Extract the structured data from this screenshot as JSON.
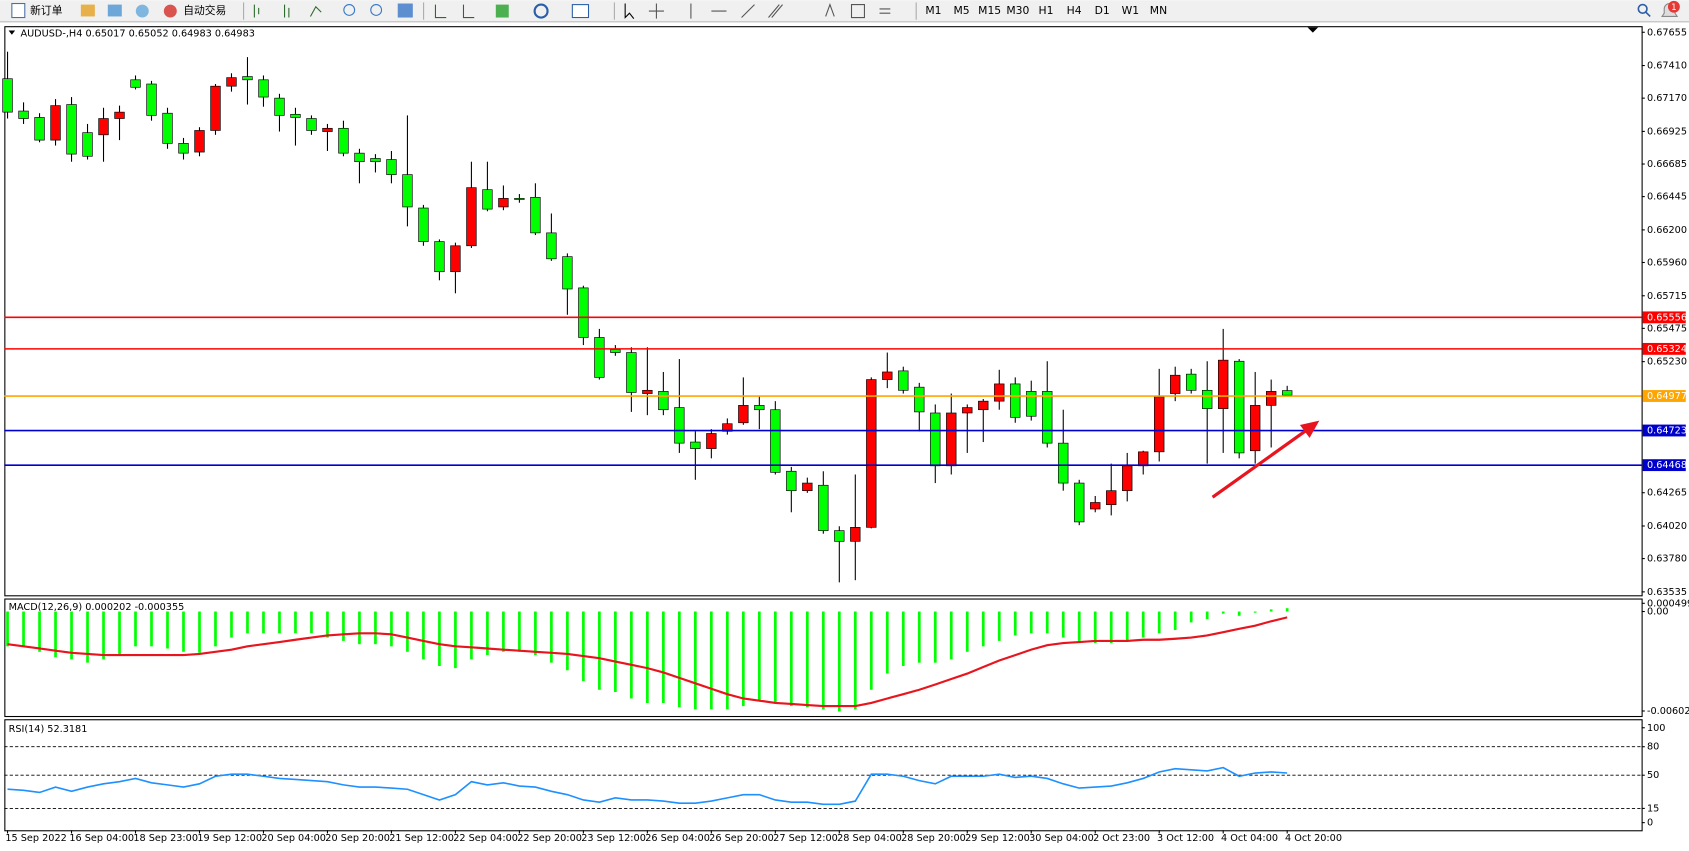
{
  "toolbar": {
    "new_order": "新订单",
    "auto_trading": "自动交易",
    "timeframes": [
      "M1",
      "M5",
      "M15",
      "M30",
      "H1",
      "H4",
      "D1",
      "W1",
      "MN"
    ],
    "notifications": 1
  },
  "chart_data": [
    {
      "type": "candlestick",
      "title": "AUDUSD-,H4 0.65017 0.65052 0.64983 0.64983",
      "categories": [
        "15 Sep 2022",
        null,
        null,
        null,
        "16 Sep 04:00",
        null,
        null,
        null,
        "18 Sep 23:00",
        null,
        null,
        null,
        "19 Sep 12:00",
        null,
        null,
        null,
        "20 Sep 04:00",
        null,
        null,
        null,
        "20 Sep 20:00",
        null,
        null,
        null,
        "21 Sep 12:00",
        null,
        null,
        null,
        "22 Sep 04:00",
        null,
        null,
        null,
        "22 Sep 20:00",
        null,
        null,
        null,
        "23 Sep 12:00",
        null,
        null,
        null,
        "26 Sep 04:00",
        null,
        null,
        null,
        "26 Sep 20:00",
        null,
        null,
        null,
        "27 Sep 12:00",
        null,
        null,
        null,
        "28 Sep 04:00",
        null,
        null,
        null,
        "28 Sep 20:00",
        null,
        null,
        null,
        "29 Sep 12:00",
        null,
        null,
        null,
        "30 Sep 04:00",
        null,
        null,
        null,
        "2 Oct 23:00",
        null,
        null,
        null,
        "3 Oct 12:00",
        null,
        null,
        null,
        "4 Oct 04:00",
        null,
        null,
        null,
        "4 Oct 20:00"
      ],
      "open": [
        0.67313,
        0.67075,
        0.67028,
        0.66861,
        0.67123,
        0.66916,
        0.669,
        0.6702,
        0.67305,
        0.67274,
        0.67059,
        0.66837,
        0.66773,
        0.66932,
        0.67258,
        0.67329,
        0.67305,
        0.6717,
        0.67051,
        0.6702,
        0.66924,
        0.66948,
        0.66765,
        0.66726,
        0.66718,
        0.66607,
        0.66361,
        0.66114,
        0.65892,
        0.66083,
        0.66496,
        0.66369,
        0.66432,
        0.6644,
        0.66178,
        0.66003,
        0.65773,
        0.65408,
        0.6532,
        0.65297,
        0.64995,
        0.65011,
        0.64892,
        0.64638,
        0.6459,
        0.64717,
        0.6478,
        0.64908,
        0.64876,
        0.64423,
        0.6428,
        0.6432,
        0.63986,
        0.63907,
        0.6401,
        0.65098,
        0.65162,
        0.65042,
        0.64852,
        0.64463,
        0.64852,
        0.64876,
        0.64939,
        0.65066,
        0.65011,
        0.65011,
        0.6463,
        0.64336,
        0.64145,
        0.64177,
        0.6428,
        0.64463,
        0.64566,
        0.64995,
        0.65138,
        0.65019,
        0.64884,
        0.65233,
        0.64574,
        0.64908,
        0.65017
      ],
      "high": [
        0.67512,
        0.67139,
        0.67059,
        0.67163,
        0.67178,
        0.6698,
        0.67099,
        0.67115,
        0.67337,
        0.67297,
        0.67099,
        0.66877,
        0.66956,
        0.67274,
        0.67353,
        0.67472,
        0.67337,
        0.67202,
        0.67099,
        0.67043,
        0.6698,
        0.67004,
        0.66797,
        0.66758,
        0.66781,
        0.67043,
        0.66384,
        0.6613,
        0.66106,
        0.66702,
        0.66702,
        0.66527,
        0.66464,
        0.66543,
        0.66321,
        0.66027,
        0.65789,
        0.65471,
        0.65352,
        0.65336,
        0.65336,
        0.65154,
        0.65249,
        0.64717,
        0.64733,
        0.64812,
        0.65114,
        0.64979,
        0.64939,
        0.64455,
        0.64376,
        0.64423,
        0.64018,
        0.64399,
        0.65114,
        0.65297,
        0.65193,
        0.65074,
        0.64915,
        0.64995,
        0.64915,
        0.64955,
        0.6517,
        0.65114,
        0.6509,
        0.65233,
        0.64876,
        0.6436,
        0.64241,
        0.64479,
        0.64558,
        0.64574,
        0.65177,
        0.65193,
        0.65177,
        0.65233,
        0.65471,
        0.65249,
        0.65154,
        0.65098,
        0.65052
      ],
      "low": [
        0.6702,
        0.6698,
        0.66845,
        0.66821,
        0.66702,
        0.66718,
        0.66702,
        0.66861,
        0.67234,
        0.67004,
        0.66797,
        0.66718,
        0.66742,
        0.669,
        0.67218,
        0.67123,
        0.67107,
        0.66924,
        0.66821,
        0.669,
        0.66781,
        0.66742,
        0.66543,
        0.66623,
        0.66543,
        0.66226,
        0.66083,
        0.65829,
        0.65733,
        0.66067,
        0.66337,
        0.66345,
        0.664,
        0.66162,
        0.65972,
        0.65575,
        0.65352,
        0.65098,
        0.65273,
        0.6486,
        0.64836,
        0.64836,
        0.64558,
        0.6436,
        0.64518,
        0.64693,
        0.64765,
        0.64733,
        0.64399,
        0.64121,
        0.64264,
        0.63963,
        0.63605,
        0.63621,
        0.64002,
        0.65035,
        0.64995,
        0.64717,
        0.64336,
        0.64399,
        0.64558,
        0.64638,
        0.64876,
        0.6478,
        0.64796,
        0.64598,
        0.6428,
        0.64026,
        0.64121,
        0.64098,
        0.64201,
        0.64399,
        0.64495,
        0.64939,
        0.64995,
        0.64479,
        0.64558,
        0.64518,
        0.64479,
        0.64598,
        0.64983
      ],
      "close": [
        0.67067,
        0.6702,
        0.66861,
        0.67115,
        0.66758,
        0.66742,
        0.6702,
        0.67067,
        0.6725,
        0.67043,
        0.66837,
        0.66765,
        0.66932,
        0.67258,
        0.67321,
        0.67305,
        0.67178,
        0.67043,
        0.67028,
        0.66932,
        0.66948,
        0.66765,
        0.66702,
        0.66702,
        0.66607,
        0.66369,
        0.66114,
        0.65892,
        0.66083,
        0.66511,
        0.66353,
        0.66432,
        0.66424,
        0.66178,
        0.65987,
        0.65765,
        0.65408,
        0.65114,
        0.65297,
        0.65003,
        0.65019,
        0.64876,
        0.6463,
        0.6459,
        0.64701,
        0.64773,
        0.64908,
        0.64876,
        0.64415,
        0.6428,
        0.64336,
        0.63986,
        0.63907,
        0.6401,
        0.65098,
        0.65154,
        0.65019,
        0.6486,
        0.64463,
        0.64852,
        0.64892,
        0.64939,
        0.65066,
        0.6482,
        0.64828,
        0.6463,
        0.64336,
        0.6405,
        0.64193,
        0.6428,
        0.64463,
        0.64566,
        0.64971,
        0.6513,
        0.65019,
        0.64884,
        0.65241,
        0.64558,
        0.64908,
        0.65011,
        0.64983
      ],
      "up_color": "#ff0000",
      "down_color": "#00ff00",
      "ylim": [
        0.6351,
        0.677
      ],
      "yticks": [
        0.67655,
        {
          "value": 0.6741,
          "label": "0.67410"
        },
        {
          "value": 0.6717,
          "label": "0.67170"
        },
        0.66925,
        0.66685,
        0.66445,
        {
          "value": 0.662,
          "label": "0.66200"
        },
        {
          "value": 0.6596,
          "label": "0.65960"
        },
        0.65715,
        0.65475,
        {
          "value": 0.6523,
          "label": "0.65230"
        },
        0.64265,
        {
          "value": 0.6402,
          "label": "0.64020"
        },
        {
          "value": 0.6378,
          "label": "0.63780"
        },
        0.63535
      ],
      "levels": [
        {
          "value": 0.65556,
          "color": "#ff0000"
        },
        {
          "value": 0.65324,
          "color": "#ff0000"
        },
        {
          "value": 0.64977,
          "color": "#ffa500"
        },
        {
          "value": 0.64723,
          "color": "#0000cd"
        },
        {
          "value": 0.64468,
          "color": "#0000cd"
        }
      ]
    },
    {
      "type": "macd",
      "title": "MACD(12,26,9) 0.000202 -0.000355",
      "values": [
        -0.00211,
        -0.00211,
        -0.00244,
        -0.00277,
        -0.0029,
        -0.0031,
        -0.0029,
        -0.00264,
        -0.00211,
        -0.00211,
        -0.00224,
        -0.00244,
        -0.0025,
        -0.00211,
        -0.00158,
        -0.00132,
        -0.00132,
        -0.00132,
        -0.00132,
        -0.00132,
        -0.00158,
        -0.00178,
        -0.00198,
        -0.00198,
        -0.00211,
        -0.00244,
        -0.0029,
        -0.0033,
        -0.00343,
        -0.0029,
        -0.00264,
        -0.00244,
        -0.00244,
        -0.00264,
        -0.0031,
        -0.00356,
        -0.00422,
        -0.00474,
        -0.00488,
        -0.00527,
        -0.00554,
        -0.00554,
        -0.0058,
        -0.00593,
        -0.00593,
        -0.00593,
        -0.00573,
        -0.0054,
        -0.00554,
        -0.00573,
        -0.0058,
        -0.00593,
        -0.00606,
        -0.00593,
        -0.00474,
        -0.00376,
        -0.0033,
        -0.0031,
        -0.0031,
        -0.0029,
        -0.00244,
        -0.00211,
        -0.00178,
        -0.00145,
        -0.00132,
        -0.00132,
        -0.00158,
        -0.00178,
        -0.00191,
        -0.00191,
        -0.00178,
        -0.00158,
        -0.00132,
        -0.00112,
        -0.00066,
        -0.00046,
        -0.00013,
        -0.00026,
        -7e-05,
        0.00013,
        0.000202
      ],
      "color": "#00ff00",
      "signal": [
        -0.00198,
        -0.00211,
        -0.00224,
        -0.00237,
        -0.0025,
        -0.00257,
        -0.00264,
        -0.00264,
        -0.00264,
        -0.00264,
        -0.00264,
        -0.00264,
        -0.00257,
        -0.00244,
        -0.00231,
        -0.00211,
        -0.00198,
        -0.00185,
        -0.00171,
        -0.00158,
        -0.00145,
        -0.00138,
        -0.00132,
        -0.00132,
        -0.00138,
        -0.00158,
        -0.00178,
        -0.00198,
        -0.00211,
        -0.00217,
        -0.00224,
        -0.00231,
        -0.00237,
        -0.00244,
        -0.0025,
        -0.00257,
        -0.0027,
        -0.00283,
        -0.00303,
        -0.00323,
        -0.00343,
        -0.00369,
        -0.00402,
        -0.00435,
        -0.00468,
        -0.00501,
        -0.00527,
        -0.0054,
        -0.00554,
        -0.0056,
        -0.00567,
        -0.00573,
        -0.00573,
        -0.00573,
        -0.00554,
        -0.00527,
        -0.00501,
        -0.00474,
        -0.00442,
        -0.00409,
        -0.00376,
        -0.00336,
        -0.00297,
        -0.00264,
        -0.00231,
        -0.00204,
        -0.00191,
        -0.00185,
        -0.00178,
        -0.00178,
        -0.00178,
        -0.00171,
        -0.00171,
        -0.00165,
        -0.00158,
        -0.00145,
        -0.00125,
        -0.00105,
        -0.00086,
        -0.00059,
        -0.000355
      ],
      "signal_color": "#e8141e",
      "ylim": [
        -0.00633,
        0.00079
      ],
      "yticks": [
        0.000499,
        {
          "value": 0,
          "label": "0.00"
        },
        -0.006028
      ]
    },
    {
      "type": "line",
      "title": "RSI(14) 52.3181",
      "values": [
        35.2,
        34.1,
        31.8,
        37.5,
        33.0,
        37.5,
        40.9,
        43.2,
        46.6,
        42.0,
        39.8,
        37.5,
        40.9,
        48.9,
        51.1,
        51.1,
        48.9,
        46.6,
        45.5,
        44.3,
        43.2,
        39.8,
        37.5,
        37.5,
        36.4,
        35.2,
        29.5,
        23.9,
        29.5,
        43.2,
        39.8,
        42.0,
        38.6,
        37.5,
        33.0,
        29.5,
        23.9,
        21.6,
        26.1,
        23.9,
        23.9,
        22.7,
        20.5,
        20.5,
        22.7,
        26.1,
        29.5,
        29.5,
        23.9,
        21.6,
        21.6,
        19.3,
        19.3,
        22.7,
        51.1,
        51.1,
        48.9,
        44.3,
        40.9,
        48.9,
        48.9,
        48.9,
        51.1,
        47.7,
        48.9,
        46.6,
        40.9,
        36.4,
        37.5,
        38.6,
        42.0,
        46.6,
        53.4,
        56.8,
        55.7,
        54.5,
        58.0,
        48.9,
        52.3,
        53.4,
        52.3181
      ],
      "color": "#1e90ff",
      "ylim": [
        -8,
        109
      ],
      "yticks": [
        100,
        80,
        50,
        15,
        0
      ],
      "levels": [
        80,
        50,
        15
      ]
    }
  ]
}
